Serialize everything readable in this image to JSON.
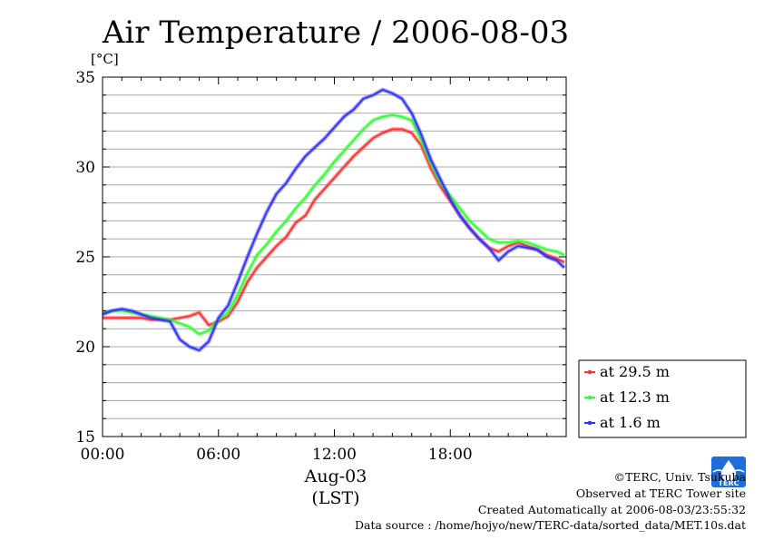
{
  "chart_data": {
    "type": "line",
    "title": "Air Temperature / 2006-08-03",
    "ylabel": "[°C]",
    "xlabel_line1": "Aug-03",
    "xlabel_line2": "(LST)",
    "ylim": [
      15,
      35
    ],
    "yticks": [
      15,
      20,
      25,
      30,
      35
    ],
    "xlim_hours": [
      0,
      24
    ],
    "xticks": [
      {
        "h": 0,
        "label": "00:00"
      },
      {
        "h": 6,
        "label": "06:00"
      },
      {
        "h": 12,
        "label": "12:00"
      },
      {
        "h": 18,
        "label": "18:00"
      }
    ],
    "grid": true,
    "legend_position": "bottom-right outside",
    "x_hours": [
      0,
      0.5,
      1,
      1.5,
      2,
      2.5,
      3,
      3.5,
      4,
      4.5,
      5,
      5.5,
      6,
      6.5,
      7,
      7.5,
      8,
      8.5,
      9,
      9.5,
      10,
      10.5,
      11,
      11.5,
      12,
      12.5,
      13,
      13.5,
      14,
      14.5,
      15,
      15.5,
      16,
      16.5,
      17,
      17.5,
      18,
      18.5,
      19,
      19.5,
      20,
      20.5,
      21,
      21.5,
      22,
      22.5,
      23,
      23.5,
      23.9
    ],
    "series": [
      {
        "name": "at 29.5 m",
        "color": "#ff3030",
        "values": [
          21.6,
          21.6,
          21.6,
          21.6,
          21.6,
          21.5,
          21.5,
          21.5,
          21.6,
          21.7,
          21.9,
          21.2,
          21.4,
          21.7,
          22.5,
          23.6,
          24.4,
          25.0,
          25.6,
          26.1,
          26.9,
          27.3,
          28.2,
          28.8,
          29.4,
          30.0,
          30.6,
          31.1,
          31.6,
          31.9,
          32.1,
          32.1,
          31.9,
          31.2,
          29.9,
          28.9,
          28.1,
          27.3,
          26.6,
          26.0,
          25.5,
          25.3,
          25.6,
          25.8,
          25.6,
          25.4,
          25.1,
          24.9,
          24.7
        ]
      },
      {
        "name": "at 12.3 m",
        "color": "#30ff30",
        "values": [
          21.9,
          22.0,
          22.0,
          21.9,
          21.8,
          21.7,
          21.6,
          21.5,
          21.3,
          21.1,
          20.7,
          20.9,
          21.5,
          21.9,
          22.9,
          24.1,
          25.1,
          25.7,
          26.4,
          27.0,
          27.7,
          28.3,
          29.0,
          29.6,
          30.3,
          30.9,
          31.5,
          32.1,
          32.6,
          32.8,
          32.9,
          32.8,
          32.6,
          31.5,
          30.2,
          29.1,
          28.4,
          27.7,
          27.0,
          26.5,
          26.0,
          25.8,
          25.8,
          25.9,
          25.8,
          25.6,
          25.4,
          25.3,
          25.1
        ]
      },
      {
        "name": "at 1.6 m",
        "color": "#3030ff",
        "values": [
          21.8,
          22.0,
          22.1,
          22.0,
          21.8,
          21.6,
          21.5,
          21.4,
          20.4,
          20.0,
          19.8,
          20.3,
          21.6,
          22.3,
          23.6,
          25.0,
          26.3,
          27.5,
          28.5,
          29.1,
          29.9,
          30.6,
          31.1,
          31.6,
          32.2,
          32.8,
          33.2,
          33.8,
          34.0,
          34.3,
          34.1,
          33.8,
          33.0,
          31.8,
          30.4,
          29.3,
          28.2,
          27.3,
          26.6,
          26.0,
          25.5,
          24.8,
          25.3,
          25.6,
          25.5,
          25.4,
          25.0,
          24.8,
          24.4
        ]
      }
    ]
  },
  "credits": {
    "copyright": "©TERC, Univ. Tsukuba",
    "observed": "Observed at TERC Tower site",
    "created": "Created Automatically at 2006-08-03/23:55:32",
    "source": "Data source : /home/hojyo/new/TERC-data/sorted_data/MET.10s.dat",
    "logo_text": "TERC"
  }
}
